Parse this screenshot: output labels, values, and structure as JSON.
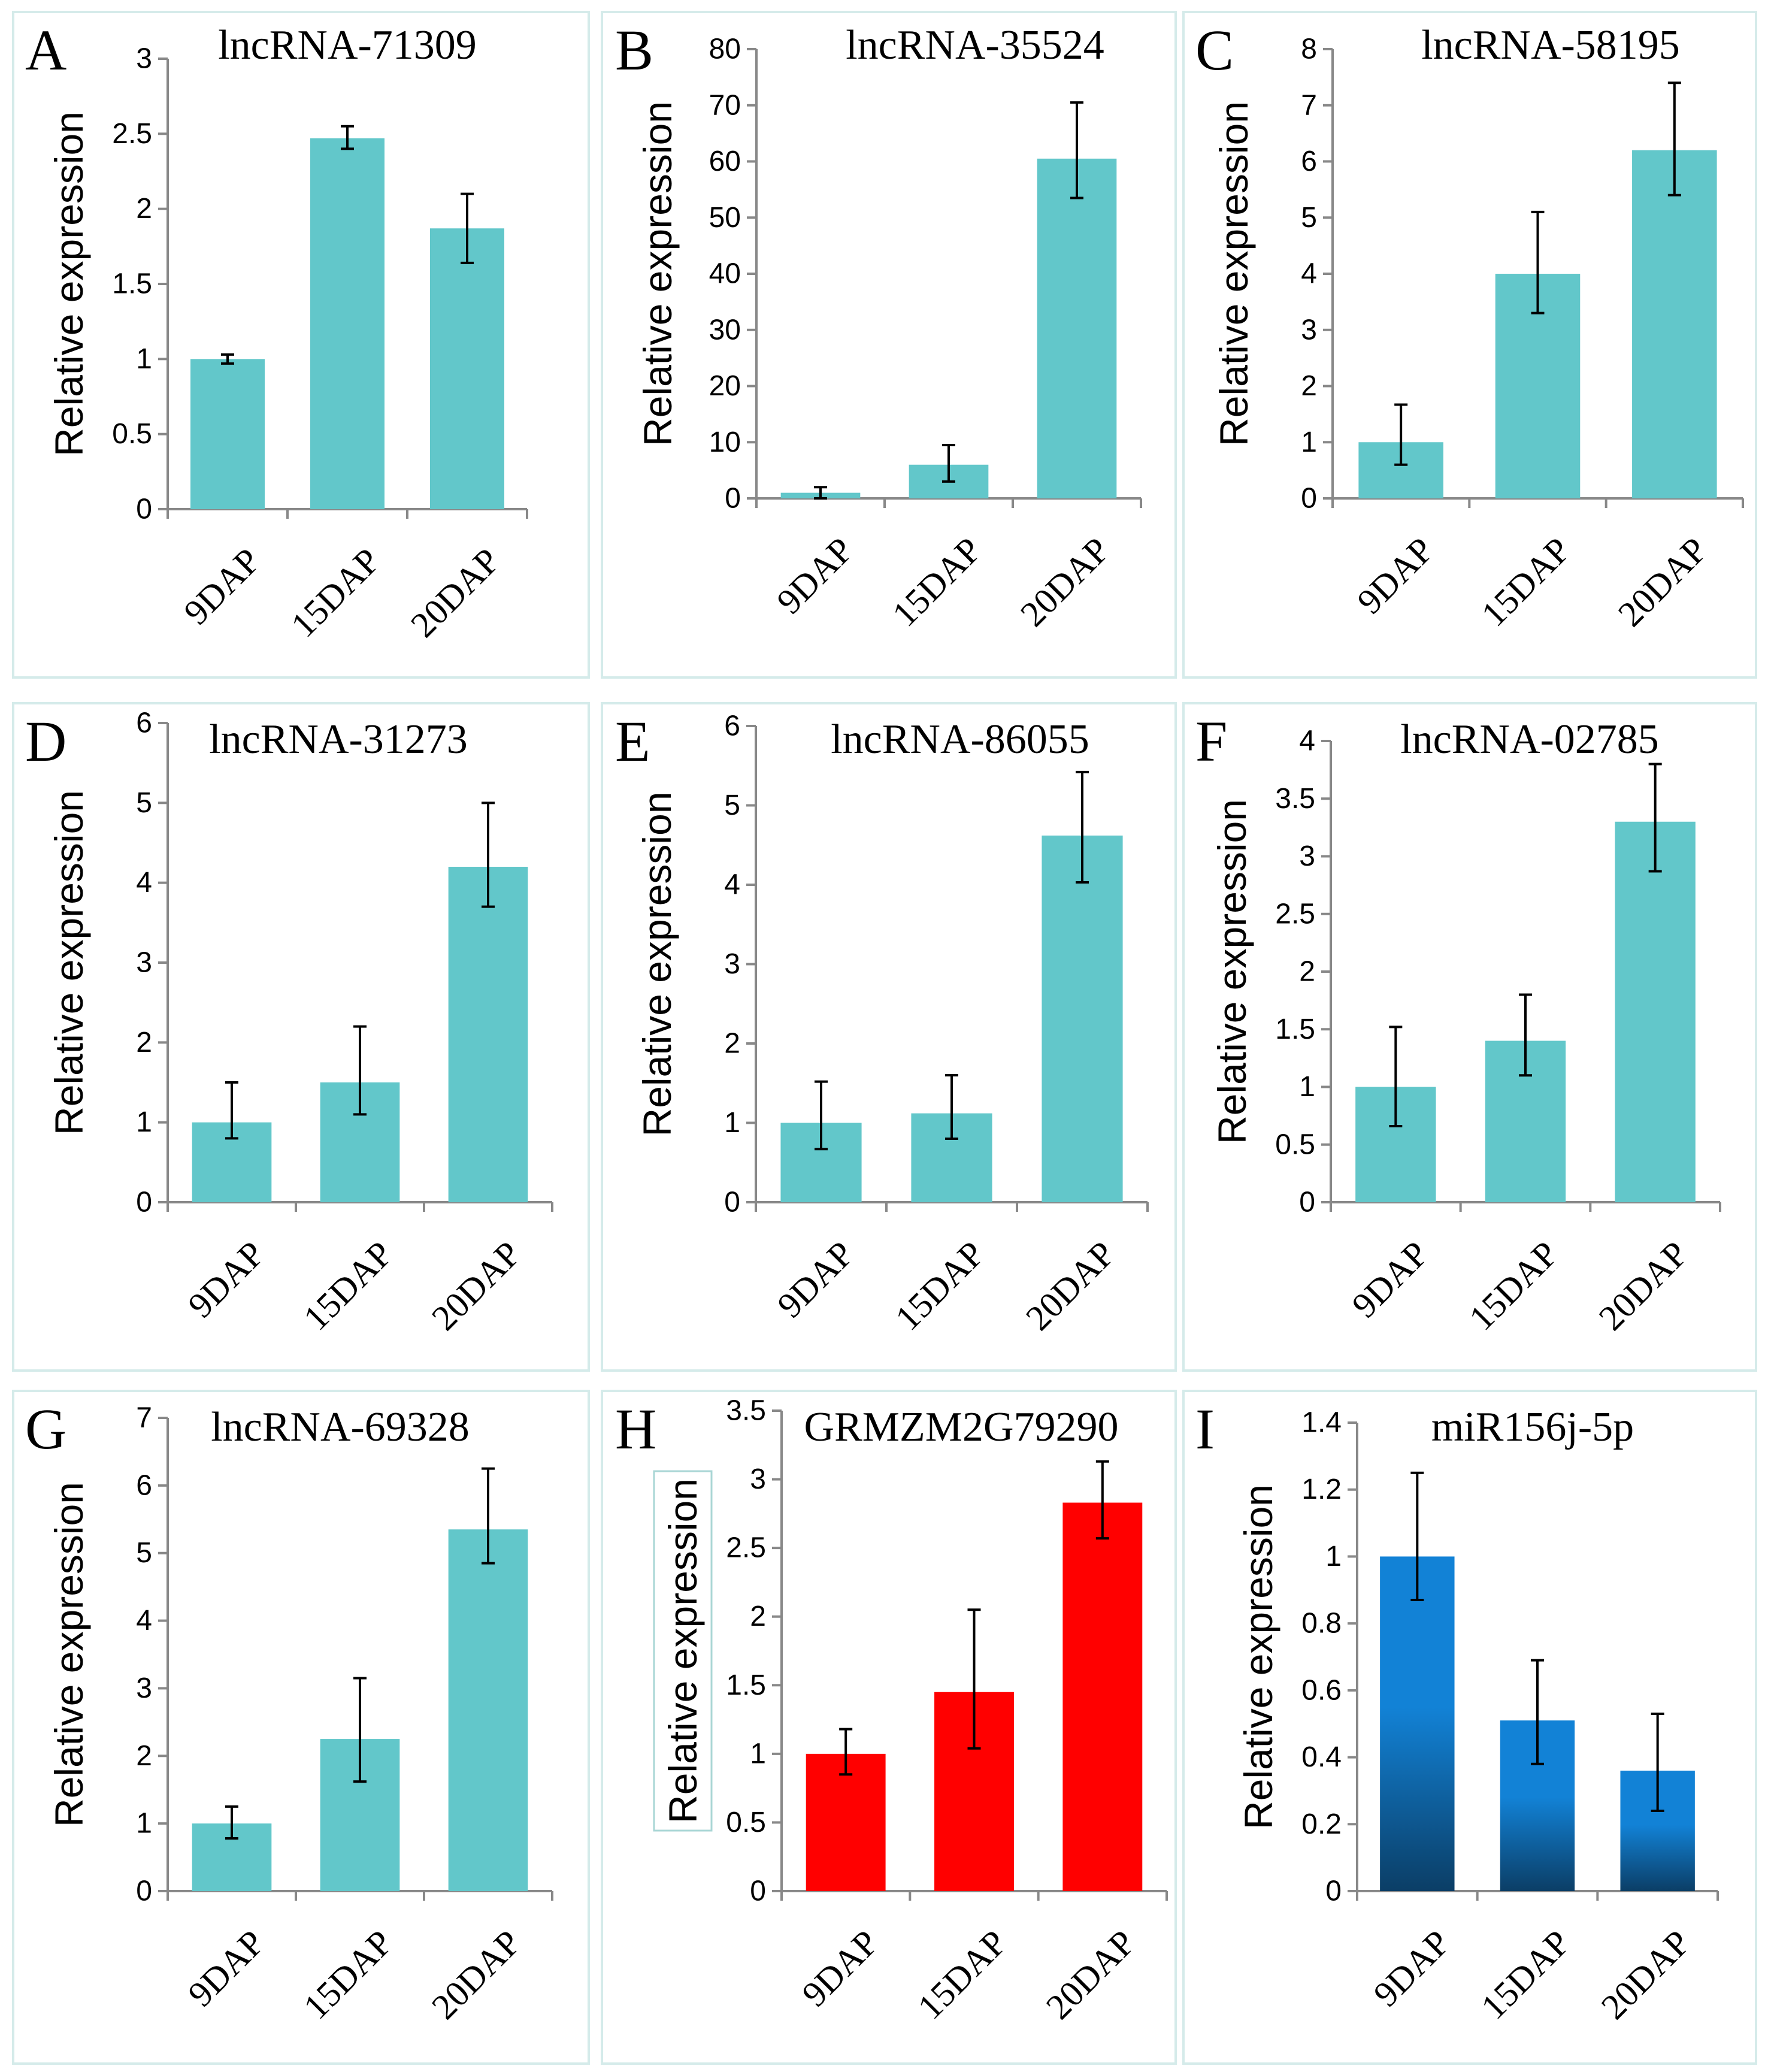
{
  "figure": {
    "colors": {
      "teal": "#62c7ca",
      "red": "#ff0000",
      "blue_top": "#1282d6",
      "blue_bottom": "#0b3e66",
      "panel_border": "#d5ebea"
    }
  },
  "chart_data": [
    {
      "panel": "A",
      "type": "bar",
      "title": "lncRNA-71309",
      "ylabel": "Relative expression",
      "xlabel": "",
      "categories": [
        "9DAP",
        "15DAP",
        "20DAP"
      ],
      "values": [
        1.0,
        2.47,
        1.87
      ],
      "err_low": [
        0.97,
        2.4,
        1.64
      ],
      "err_high": [
        1.03,
        2.55,
        2.1
      ],
      "ylim": [
        0,
        3
      ],
      "yticks": [
        "0",
        "0.5",
        "1",
        "1.5",
        "2",
        "2.5",
        "3"
      ],
      "fill": "teal"
    },
    {
      "panel": "B",
      "type": "bar",
      "title": "lncRNA-35524",
      "ylabel": "Relative expression",
      "xlabel": "",
      "categories": [
        "9DAP",
        "15DAP",
        "20DAP"
      ],
      "values": [
        1.0,
        6.0,
        60.5
      ],
      "err_low": [
        0.0,
        3.0,
        53.5
      ],
      "err_high": [
        2.0,
        9.5,
        70.5
      ],
      "ylim": [
        0,
        80
      ],
      "yticks": [
        "0",
        "10",
        "20",
        "30",
        "40",
        "50",
        "60",
        "70",
        "80"
      ],
      "fill": "teal"
    },
    {
      "panel": "C",
      "type": "bar",
      "title": "lncRNA-58195",
      "ylabel": "Relative expression",
      "xlabel": "",
      "categories": [
        "9DAP",
        "15DAP",
        "20DAP"
      ],
      "values": [
        1.0,
        4.0,
        6.2
      ],
      "err_low": [
        0.6,
        3.3,
        5.4
      ],
      "err_high": [
        1.67,
        5.1,
        7.4
      ],
      "ylim": [
        0,
        8
      ],
      "yticks": [
        "0",
        "1",
        "2",
        "3",
        "4",
        "5",
        "6",
        "7",
        "8"
      ],
      "fill": "teal"
    },
    {
      "panel": "D",
      "type": "bar",
      "title": "lncRNA-31273",
      "ylabel": "Relative expression",
      "xlabel": "",
      "categories": [
        "9DAP",
        "15DAP",
        "20DAP"
      ],
      "values": [
        1.0,
        1.5,
        4.2
      ],
      "err_low": [
        0.8,
        1.1,
        3.7
      ],
      "err_high": [
        1.5,
        2.2,
        5.0
      ],
      "ylim": [
        0,
        6
      ],
      "yticks": [
        "0",
        "1",
        "2",
        "3",
        "4",
        "5",
        "6"
      ],
      "fill": "teal"
    },
    {
      "panel": "E",
      "type": "bar",
      "title": "lncRNA-86055",
      "ylabel": "Relative expression",
      "xlabel": "",
      "categories": [
        "9DAP",
        "15DAP",
        "20DAP"
      ],
      "values": [
        1.0,
        1.12,
        4.62
      ],
      "err_low": [
        0.67,
        0.8,
        4.03
      ],
      "err_high": [
        1.52,
        1.6,
        5.42
      ],
      "ylim": [
        0,
        6
      ],
      "yticks": [
        "0",
        "1",
        "2",
        "3",
        "4",
        "5",
        "6"
      ],
      "fill": "teal"
    },
    {
      "panel": "F",
      "type": "bar",
      "title": "lncRNA-02785",
      "ylabel": "Relative expression",
      "xlabel": "",
      "categories": [
        "9DAP",
        "15DAP",
        "20DAP"
      ],
      "values": [
        1.0,
        1.4,
        3.3
      ],
      "err_low": [
        0.66,
        1.1,
        2.87
      ],
      "err_high": [
        1.52,
        1.8,
        3.8
      ],
      "ylim": [
        0,
        4
      ],
      "yticks": [
        "0",
        "0.5",
        "1",
        "1.5",
        "2",
        "2.5",
        "3",
        "3.5",
        "4"
      ],
      "fill": "teal"
    },
    {
      "panel": "G",
      "type": "bar",
      "title": "lncRNA-69328",
      "ylabel": "Relative expression",
      "xlabel": "",
      "categories": [
        "9DAP",
        "15DAP",
        "20DAP"
      ],
      "values": [
        1.0,
        2.25,
        5.35
      ],
      "err_low": [
        0.78,
        1.62,
        4.85
      ],
      "err_high": [
        1.25,
        3.15,
        6.25
      ],
      "ylim": [
        0,
        7
      ],
      "yticks": [
        "0",
        "1",
        "2",
        "3",
        "4",
        "5",
        "6",
        "7"
      ],
      "fill": "teal"
    },
    {
      "panel": "H",
      "type": "bar",
      "title": "GRMZM2G79290",
      "ylabel": "Relative expression",
      "xlabel": "",
      "categories": [
        "9DAP",
        "15DAP",
        "20DAP"
      ],
      "values": [
        1.0,
        1.45,
        2.83
      ],
      "err_low": [
        0.85,
        1.04,
        2.57
      ],
      "err_high": [
        1.18,
        2.05,
        3.13
      ],
      "ylim": [
        0,
        3.5
      ],
      "yticks": [
        "0",
        "0.5",
        "1",
        "1.5",
        "2",
        "2.5",
        "3",
        "3.5"
      ],
      "fill": "red"
    },
    {
      "panel": "I",
      "type": "bar",
      "title": "miR156j-5p",
      "ylabel": "Relative expression",
      "xlabel": "",
      "categories": [
        "9DAP",
        "15DAP",
        "20DAP"
      ],
      "values": [
        1.0,
        0.51,
        0.36
      ],
      "err_low": [
        0.87,
        0.38,
        0.24
      ],
      "err_high": [
        1.25,
        0.69,
        0.53
      ],
      "ylim": [
        0,
        1.4
      ],
      "yticks": [
        "0",
        "0.2",
        "0.4",
        "0.6",
        "0.8",
        "1",
        "1.2",
        "1.4"
      ],
      "fill": "blue"
    }
  ]
}
